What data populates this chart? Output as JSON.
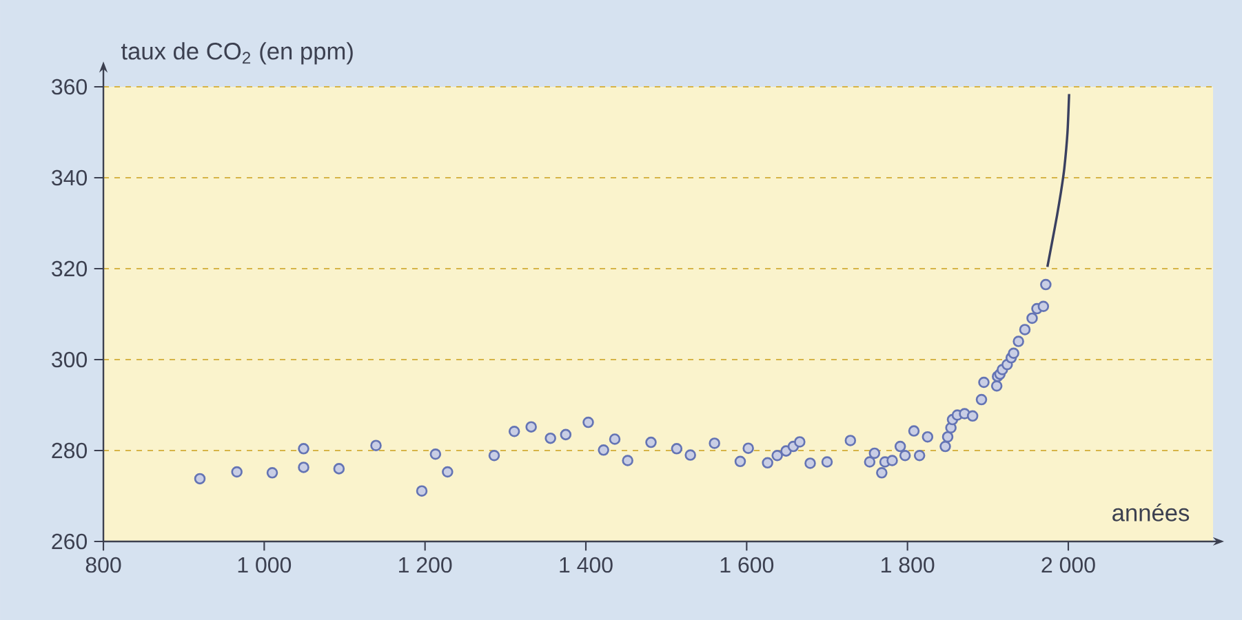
{
  "chart_data": {
    "type": "scatter",
    "xlabel": "années",
    "ylabel": "taux de CO$_{2}$ (en ppm)",
    "xlim": [
      800,
      2180
    ],
    "ylim": [
      260,
      360
    ],
    "xticks": [
      800,
      {
        "value": 1000,
        "label": "1 000"
      },
      {
        "value": 1200,
        "label": "1 200"
      },
      {
        "value": 1400,
        "label": "1 400"
      },
      {
        "value": 1600,
        "label": "1 600"
      },
      {
        "value": 1800,
        "label": "1 800"
      },
      {
        "value": 2000,
        "label": "2 000"
      }
    ],
    "yticks": [
      260,
      280,
      300,
      320,
      340,
      360
    ],
    "grid": "y",
    "legend": false,
    "series": [
      {
        "marker": "circle",
        "color": "#6474b4",
        "x": [
          920,
          966,
          1010,
          1049,
          1049,
          1093,
          1139,
          1196,
          1213,
          1228,
          1286,
          1311,
          1332,
          1356,
          1375,
          1403,
          1422,
          1436,
          1452,
          1481,
          1513,
          1530,
          1560,
          1592,
          1602,
          1626,
          1638,
          1649,
          1658,
          1666,
          1679,
          1700,
          1729,
          1753,
          1759,
          1768,
          1772,
          1781,
          1791,
          1797,
          1808,
          1815,
          1825,
          1847,
          1850,
          1854,
          1856,
          1862,
          1871,
          1881,
          1892,
          1895,
          1911,
          1912,
          1915,
          1918,
          1924,
          1929,
          1932,
          1938,
          1946,
          1955,
          1961,
          1969,
          1972
        ],
        "values": [
          273.8,
          275.3,
          275.1,
          280.4,
          276.3,
          276,
          281.1,
          271.1,
          279.2,
          275.3,
          278.9,
          284.2,
          285.2,
          282.7,
          283.5,
          286.2,
          280.1,
          282.5,
          277.8,
          281.8,
          280.4,
          279,
          281.6,
          277.6,
          280.5,
          277.3,
          278.9,
          279.9,
          280.9,
          281.9,
          277.2,
          277.5,
          282.2,
          277.5,
          279.4,
          275.1,
          277.5,
          277.8,
          280.9,
          278.9,
          284.3,
          278.9,
          283,
          280.9,
          283,
          285,
          286.8,
          287.8,
          288.1,
          287.6,
          291.2,
          295,
          294.2,
          296.3,
          296.8,
          297.8,
          298.9,
          300.4,
          301.4,
          304,
          306.6,
          309.1,
          311.2,
          311.7,
          316.5
        ]
      },
      {
        "type": "line",
        "line_style": "solid",
        "color": "#3a4060",
        "x": [
          1974,
          1980,
          1986,
          1991,
          1995,
          1999,
          2001
        ],
        "values": [
          320.4,
          326,
          331.7,
          337,
          342,
          350,
          358.4
        ]
      }
    ]
  }
}
